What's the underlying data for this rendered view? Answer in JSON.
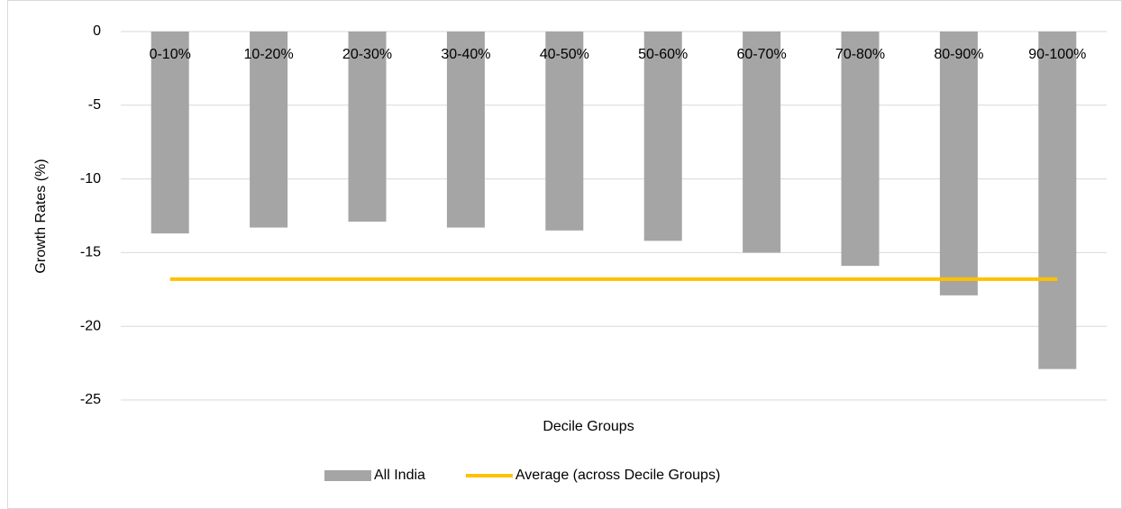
{
  "chart_data": {
    "type": "bar",
    "categories": [
      "0-10%",
      "10-20%",
      "20-30%",
      "30-40%",
      "40-50%",
      "50-60%",
      "60-70%",
      "70-80%",
      "80-90%",
      "90-100%"
    ],
    "series": [
      {
        "name": "All India",
        "type": "bar",
        "color": "#a5a5a5",
        "values": [
          -13.7,
          -13.3,
          -12.9,
          -13.3,
          -13.5,
          -14.2,
          -15.0,
          -15.9,
          -17.9,
          -22.9
        ]
      },
      {
        "name": "Average (across Decile Groups)",
        "type": "line",
        "color": "#ffc000",
        "values": [
          -16.8,
          -16.8,
          -16.8,
          -16.8,
          -16.8,
          -16.8,
          -16.8,
          -16.8,
          -16.8,
          -16.8
        ]
      }
    ],
    "xlabel": "Decile Groups",
    "ylabel": "Growth Rates (%)",
    "ylim": [
      -25,
      0
    ],
    "yticks": [
      0,
      -5,
      -10,
      -15,
      -20,
      -25
    ],
    "grid": true,
    "legend": "bottom"
  }
}
